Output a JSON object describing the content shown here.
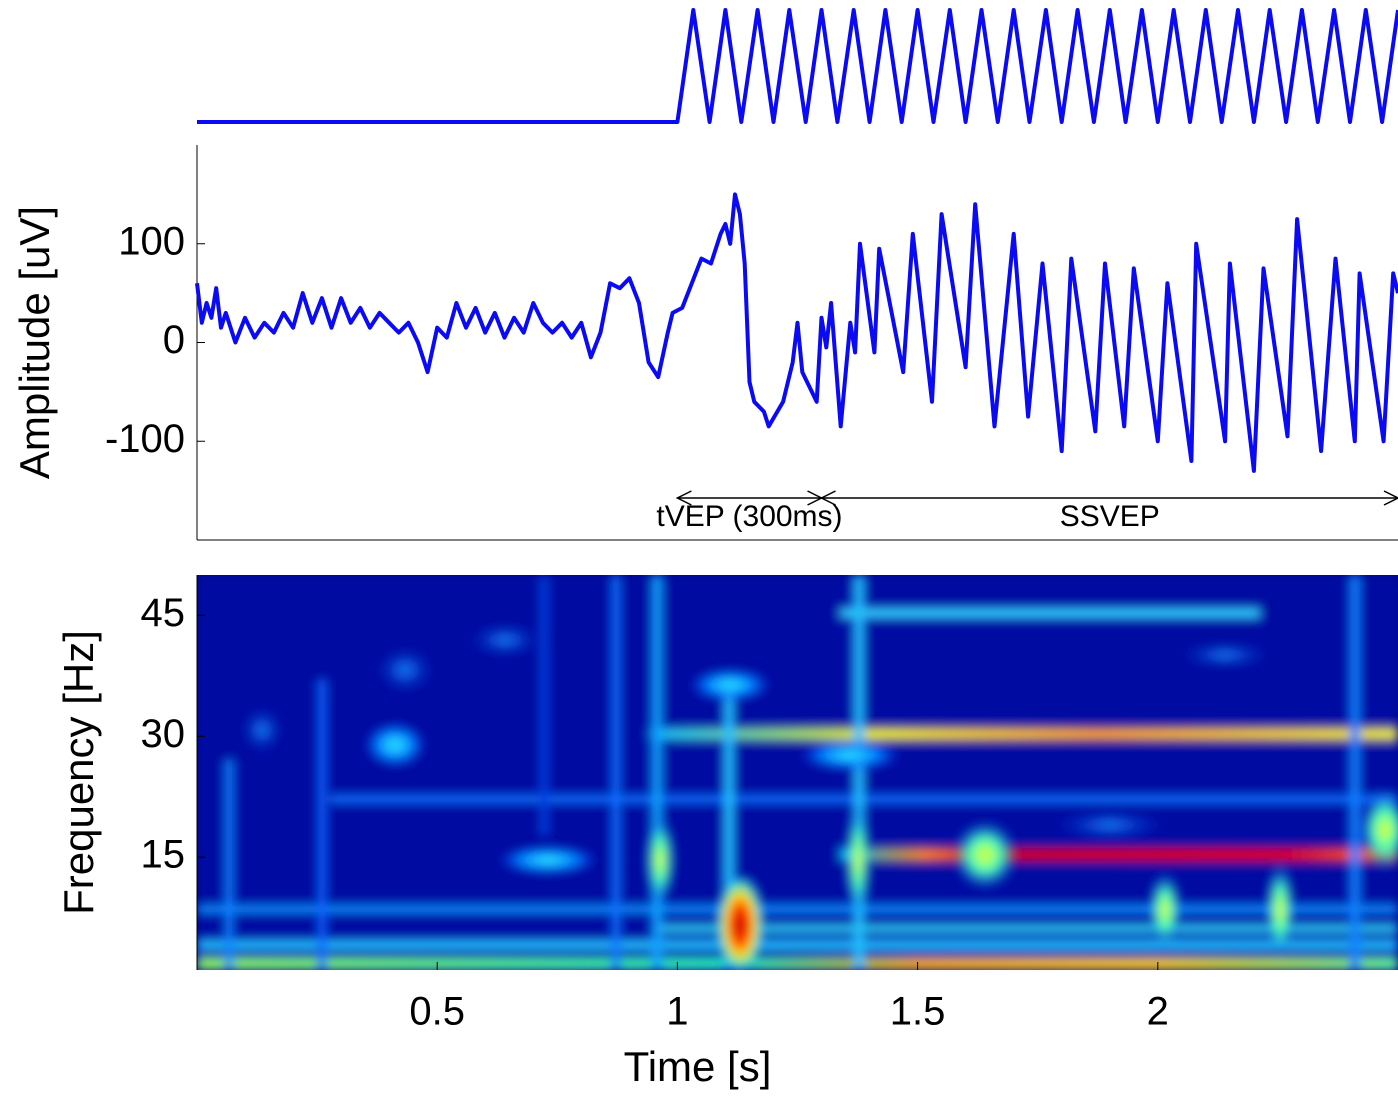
{
  "chart_data": [
    {
      "type": "line",
      "color": "#0a0af5",
      "x": [
        0,
        1,
        1.033,
        1.067,
        1.1,
        1.133,
        1.167,
        1.2,
        1.233,
        1.267,
        1.3,
        1.333,
        1.367,
        1.4,
        1.433,
        1.467,
        1.5,
        1.533,
        1.567,
        1.6,
        1.633,
        1.667,
        1.7,
        1.733,
        1.767,
        1.8,
        1.833,
        1.867,
        1.9,
        1.933,
        1.967,
        2,
        2.033,
        2.067,
        2.1,
        2.133,
        2.167,
        2.2,
        2.233,
        2.267,
        2.3,
        2.333,
        2.367,
        2.4,
        2.433,
        2.467,
        2.5
      ],
      "values": [
        0,
        0,
        1,
        0,
        1,
        0,
        1,
        0,
        1,
        0,
        1,
        0,
        1,
        0,
        1,
        0,
        1,
        0,
        1,
        0,
        1,
        0,
        1,
        0,
        1,
        0,
        1,
        0,
        1,
        0,
        1,
        0,
        1,
        0,
        1,
        0,
        1,
        0,
        1,
        0,
        1,
        0,
        1,
        0,
        1,
        0,
        1
      ]
    },
    {
      "type": "line",
      "color": "#0a0af5",
      "ylabel": "Amplitude [uV]",
      "xlim": [
        0,
        2.5
      ],
      "ylim": [
        -200,
        200
      ],
      "yticks": [
        -100,
        0,
        100
      ],
      "x": [
        0,
        0.01,
        0.02,
        0.03,
        0.04,
        0.05,
        0.06,
        0.08,
        0.1,
        0.12,
        0.14,
        0.16,
        0.18,
        0.2,
        0.22,
        0.24,
        0.26,
        0.28,
        0.3,
        0.32,
        0.34,
        0.36,
        0.38,
        0.4,
        0.42,
        0.44,
        0.46,
        0.48,
        0.5,
        0.52,
        0.54,
        0.56,
        0.58,
        0.6,
        0.62,
        0.64,
        0.66,
        0.68,
        0.7,
        0.72,
        0.74,
        0.76,
        0.78,
        0.8,
        0.82,
        0.84,
        0.86,
        0.88,
        0.9,
        0.92,
        0.94,
        0.96,
        0.98,
        0.99,
        1.01,
        1.03,
        1.05,
        1.07,
        1.09,
        1.1,
        1.11,
        1.12,
        1.13,
        1.14,
        1.15,
        1.16,
        1.18,
        1.19,
        1.22,
        1.24,
        1.25,
        1.26,
        1.28,
        1.29,
        1.3,
        1.31,
        1.32,
        1.34,
        1.36,
        1.37,
        1.38,
        1.41,
        1.42,
        1.47,
        1.49,
        1.53,
        1.55,
        1.6,
        1.62,
        1.66,
        1.7,
        1.73,
        1.76,
        1.8,
        1.82,
        1.87,
        1.89,
        1.93,
        1.95,
        2,
        2.02,
        2.07,
        2.08,
        2.14,
        2.15,
        2.2,
        2.22,
        2.27,
        2.29,
        2.34,
        2.37,
        2.41,
        2.42,
        2.47,
        2.49,
        2.5
      ],
      "values": [
        60,
        20,
        40,
        25,
        55,
        15,
        30,
        0,
        25,
        5,
        20,
        10,
        30,
        15,
        50,
        20,
        45,
        15,
        45,
        20,
        35,
        15,
        30,
        20,
        10,
        20,
        0,
        -30,
        15,
        5,
        40,
        15,
        35,
        10,
        30,
        5,
        25,
        10,
        40,
        20,
        10,
        20,
        5,
        20,
        -15,
        10,
        60,
        55,
        65,
        40,
        -20,
        -35,
        10,
        30,
        35,
        60,
        85,
        80,
        110,
        120,
        100,
        150,
        130,
        80,
        -40,
        -60,
        -70,
        -85,
        -60,
        -20,
        20,
        -30,
        -50,
        -60,
        25,
        -5,
        40,
        -85,
        20,
        -10,
        100,
        -10,
        95,
        -30,
        110,
        -60,
        130,
        -25,
        140,
        -85,
        110,
        -75,
        80,
        -110,
        85,
        -90,
        80,
        -85,
        75,
        -100,
        60,
        -120,
        100,
        -100,
        80,
        -130,
        75,
        -95,
        125,
        -110,
        85,
        -100,
        70,
        -100,
        70,
        50
      ],
      "annotations": [
        {
          "text": "tVEP (300ms)",
          "span": [
            1,
            1.3
          ]
        },
        {
          "text": "SSVEP",
          "span": [
            1.3,
            2.5
          ]
        }
      ]
    },
    {
      "type": "heatmap",
      "xlabel": "Time [s]",
      "ylabel": "Frequency [Hz]",
      "xlim": [
        0,
        2.5
      ],
      "ylim": [
        1,
        50
      ],
      "xticks": [
        0.5,
        1,
        1.5,
        2
      ],
      "yticks": [
        15,
        30,
        45
      ]
    }
  ]
}
